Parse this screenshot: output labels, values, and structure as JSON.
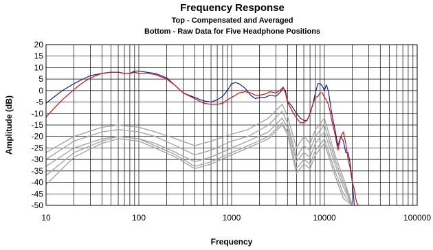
{
  "chart_data": {
    "type": "line",
    "title": "Frequency Response",
    "subtitle_lines": [
      "Top -  Compensated and Averaged",
      "Bottom - Raw Data for Five Headphone Positions"
    ],
    "xlabel": "Frequency",
    "ylabel": "Amplitude (dB)",
    "x_scale": "log",
    "xlim": [
      10,
      100000
    ],
    "ylim": [
      -50,
      20
    ],
    "x_ticks": [
      10,
      100,
      1000,
      10000,
      100000
    ],
    "x_tick_labels": [
      "10",
      "100",
      "1000",
      "10000",
      "100000"
    ],
    "y_ticks": [
      20,
      15,
      10,
      5,
      0,
      -5,
      -10,
      -15,
      -20,
      -25,
      -30,
      -35,
      -40,
      -45,
      -50
    ],
    "y_tick_labels": [
      "20",
      "15",
      "10",
      "5",
      "0",
      "-5",
      "-10",
      "-15",
      "-20",
      "-25",
      "-30",
      "-35",
      "-40",
      "-45",
      "-50"
    ],
    "grid": true,
    "legend": "none",
    "series": [
      {
        "color": "#1a1a9c",
        "x": [
          10,
          12,
          15,
          20,
          25,
          30,
          40,
          50,
          60,
          70,
          80,
          90,
          100,
          120,
          150,
          200,
          250,
          300,
          400,
          500,
          600,
          700,
          800,
          900,
          1000,
          1100,
          1200,
          1400,
          1600,
          1800,
          2000,
          2300,
          2600,
          3000,
          3300,
          3600,
          3800,
          4000,
          4500,
          5000,
          5500,
          6000,
          6500,
          7000,
          7500,
          8000,
          8500,
          9000,
          9500,
          10000,
          10500,
          11000,
          11500,
          12000,
          13000,
          14000,
          15000,
          16000,
          17000,
          18000,
          19000,
          20000,
          21000
        ],
        "y": [
          -5.5,
          -3,
          0,
          3,
          5,
          6.5,
          7.5,
          8,
          8,
          7.5,
          7.5,
          8.5,
          8.5,
          8,
          7.5,
          5.5,
          2,
          -1,
          -3,
          -4.5,
          -5,
          -4,
          -2.5,
          0,
          3,
          3.5,
          3,
          1,
          -2,
          -3.5,
          -3,
          -3,
          -2,
          -2.5,
          -1,
          1,
          0,
          -4.5,
          -7,
          -10,
          -12,
          -13,
          -13,
          -10,
          -6,
          -1,
          3,
          3,
          2,
          0,
          2.5,
          0,
          -5,
          -10,
          -17,
          -24,
          -20,
          -22,
          -27,
          -27,
          -32,
          -40,
          -50
        ]
      },
      {
        "color": "#d11010",
        "x": [
          10,
          12,
          15,
          20,
          25,
          30,
          40,
          50,
          60,
          70,
          80,
          90,
          100,
          120,
          150,
          200,
          250,
          300,
          400,
          500,
          600,
          700,
          800,
          900,
          1000,
          1100,
          1200,
          1400,
          1600,
          1800,
          2000,
          2300,
          2600,
          3000,
          3300,
          3600,
          3800,
          4000,
          4500,
          5000,
          5500,
          6000,
          6500,
          7000,
          7500,
          8000,
          8500,
          9000,
          9500,
          10000,
          10500,
          11000,
          11500,
          12000,
          13000,
          14000,
          15000,
          16000,
          17000,
          18000,
          19000,
          20000,
          21000,
          22000,
          23000
        ],
        "y": [
          -11.5,
          -8,
          -4,
          0.5,
          3.5,
          5.5,
          7.5,
          8,
          8,
          7.5,
          7.5,
          8,
          7.5,
          7.5,
          7,
          5,
          2,
          -1,
          -3.5,
          -5.5,
          -6,
          -6,
          -5.5,
          -4,
          -3,
          -2,
          -1,
          -0.5,
          -1,
          -2,
          -2,
          -1.5,
          -0.5,
          -1,
          0,
          1.5,
          -1,
          -5,
          -9,
          -12,
          -14,
          -14,
          -13,
          -10,
          -6,
          -3,
          -2.5,
          -1,
          -1,
          -3,
          -4,
          -6,
          -9,
          -13,
          -19,
          -26,
          -20,
          -18,
          -23,
          -30,
          -34,
          -40,
          -43,
          -48,
          -50
        ]
      },
      {
        "color": "#a5a5a5",
        "x": [
          10,
          20,
          40,
          60,
          100,
          150,
          250,
          400,
          600,
          1000,
          1500,
          2500,
          3500,
          4000,
          5000,
          6000,
          7000,
          8000,
          10000,
          13000,
          16000,
          20000
        ],
        "y": [
          -27,
          -20,
          -16,
          -15,
          -16,
          -18,
          -21,
          -24,
          -22,
          -19,
          -17,
          -12,
          -6,
          -11,
          -25,
          -20,
          -23,
          -17,
          -12,
          -28,
          -38,
          -50
        ]
      },
      {
        "color": "#a5a5a5",
        "x": [
          10,
          20,
          40,
          60,
          100,
          150,
          250,
          400,
          600,
          1000,
          1500,
          2500,
          3500,
          4000,
          5000,
          6000,
          7000,
          8000,
          10000,
          13000,
          16000,
          20000
        ],
        "y": [
          -30,
          -22,
          -18,
          -17,
          -18,
          -20,
          -24,
          -28,
          -26,
          -22,
          -20,
          -15,
          -9,
          -14,
          -29,
          -24,
          -26,
          -20,
          -15,
          -30,
          -40,
          -50
        ]
      },
      {
        "color": "#a5a5a5",
        "x": [
          10,
          20,
          40,
          60,
          100,
          150,
          250,
          400,
          600,
          1000,
          1500,
          2500,
          3500,
          4000,
          5000,
          6000,
          7000,
          8000,
          10000,
          13000,
          16000,
          20000
        ],
        "y": [
          -33,
          -25,
          -21,
          -20,
          -21,
          -23,
          -27,
          -31,
          -29,
          -25,
          -22,
          -18,
          -12,
          -16,
          -31,
          -27,
          -29,
          -23,
          -18,
          -32,
          -42,
          -50
        ]
      },
      {
        "color": "#a5a5a5",
        "x": [
          10,
          20,
          40,
          60,
          100,
          150,
          250,
          400,
          600,
          1000,
          1500,
          2500,
          3500,
          4000,
          5000,
          6000,
          7000,
          8000,
          10000,
          13000,
          16000,
          20000
        ],
        "y": [
          -37,
          -27,
          -22,
          -20,
          -21,
          -24,
          -28,
          -33,
          -31,
          -27,
          -24,
          -20,
          -14,
          -18,
          -34,
          -30,
          -32,
          -26,
          -21,
          -35,
          -45,
          -50
        ]
      },
      {
        "color": "#a5a5a5",
        "x": [
          10,
          20,
          40,
          60,
          100,
          150,
          250,
          400,
          600,
          1000,
          1500,
          2500,
          3500,
          4000,
          5000,
          6000,
          7000,
          8000,
          10000,
          13000,
          16000,
          20000
        ],
        "y": [
          -41,
          -29,
          -23,
          -21,
          -22,
          -25,
          -29,
          -34,
          -32,
          -28,
          -25,
          -21,
          -15,
          -19,
          -36,
          -32,
          -34,
          -28,
          -23,
          -37,
          -47,
          -50
        ]
      }
    ]
  }
}
